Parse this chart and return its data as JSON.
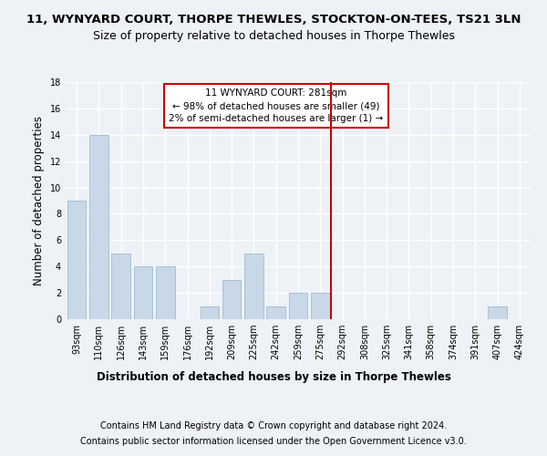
{
  "title": "11, WYNYARD COURT, THORPE THEWLES, STOCKTON-ON-TEES, TS21 3LN",
  "subtitle": "Size of property relative to detached houses in Thorpe Thewles",
  "xlabel": "Distribution of detached houses by size in Thorpe Thewles",
  "ylabel": "Number of detached properties",
  "bar_color": "#c8d8e8",
  "bar_edgecolor": "#a8c0d4",
  "categories": [
    "93sqm",
    "110sqm",
    "126sqm",
    "143sqm",
    "159sqm",
    "176sqm",
    "192sqm",
    "209sqm",
    "225sqm",
    "242sqm",
    "259sqm",
    "275sqm",
    "292sqm",
    "308sqm",
    "325sqm",
    "341sqm",
    "358sqm",
    "374sqm",
    "391sqm",
    "407sqm",
    "424sqm"
  ],
  "values": [
    9,
    14,
    5,
    4,
    4,
    0,
    1,
    3,
    5,
    1,
    2,
    2,
    0,
    0,
    0,
    0,
    0,
    0,
    0,
    1,
    0
  ],
  "ylim": [
    0,
    18
  ],
  "yticks": [
    0,
    2,
    4,
    6,
    8,
    10,
    12,
    14,
    16,
    18
  ],
  "property_line_label": "11 WYNYARD COURT: 281sqm",
  "annotation_line1": "← 98% of detached houses are smaller (49)",
  "annotation_line2": "2% of semi-detached houses are larger (1) →",
  "annotation_box_color": "#cc0000",
  "vline_color": "#cc0000",
  "vline_x_index": 11.5,
  "footer1": "Contains HM Land Registry data © Crown copyright and database right 2024.",
  "footer2": "Contains public sector information licensed under the Open Government Licence v3.0.",
  "background_color": "#eef2f7",
  "grid_color": "#ffffff",
  "title_fontsize": 9.5,
  "subtitle_fontsize": 9,
  "axis_label_fontsize": 8.5,
  "tick_fontsize": 7,
  "footer_fontsize": 7,
  "annotation_fontsize": 7.5
}
